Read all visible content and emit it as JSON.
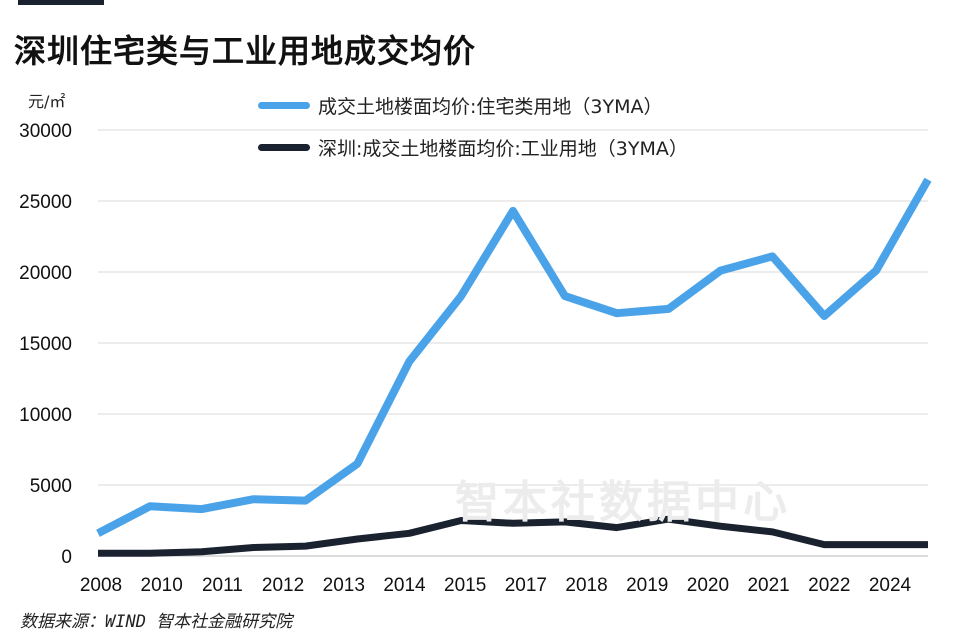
{
  "title": "深圳住宅类与工业用地成交均价",
  "unit": "元/㎡",
  "source": "数据来源：WIND 智本社金融研究院",
  "watermark": "智本社数据中心",
  "colors": {
    "residential": "#4aa3e8",
    "industrial": "#1a2230",
    "grid": "#d9d9d9"
  },
  "chart_data": {
    "type": "line",
    "title": "深圳住宅类与工业用地成交均价",
    "ylabel": "元/㎡",
    "xlabel": "",
    "ylim": [
      0,
      30000
    ],
    "xlim": [
      2008,
      2025.5
    ],
    "yticks": [
      0,
      5000,
      10000,
      15000,
      20000,
      25000,
      30000
    ],
    "xtick_labels": [
      "2008",
      "2010",
      "2011",
      "2012",
      "2013",
      "2014",
      "2015",
      "2017",
      "2018",
      "2019",
      "2020",
      "2021",
      "2022",
      "2024"
    ],
    "grid": true,
    "legend_position": "top",
    "series": [
      {
        "name": "成交土地楼面均价:住宅类用地（3YMA）",
        "color": "#4aa3e8",
        "values": [
          1600,
          3500,
          3300,
          4000,
          3900,
          6500,
          13700,
          18300,
          24300,
          18300,
          17100,
          17400,
          20100,
          21100,
          16900,
          20100,
          26500
        ]
      },
      {
        "name": "深圳:成交土地楼面均价:工业用地（3YMA）",
        "color": "#1a2230",
        "values": [
          200,
          200,
          300,
          600,
          700,
          1200,
          1600,
          2500,
          2300,
          2400,
          2000,
          2600,
          2100,
          1700,
          800,
          800,
          800
        ]
      }
    ]
  }
}
